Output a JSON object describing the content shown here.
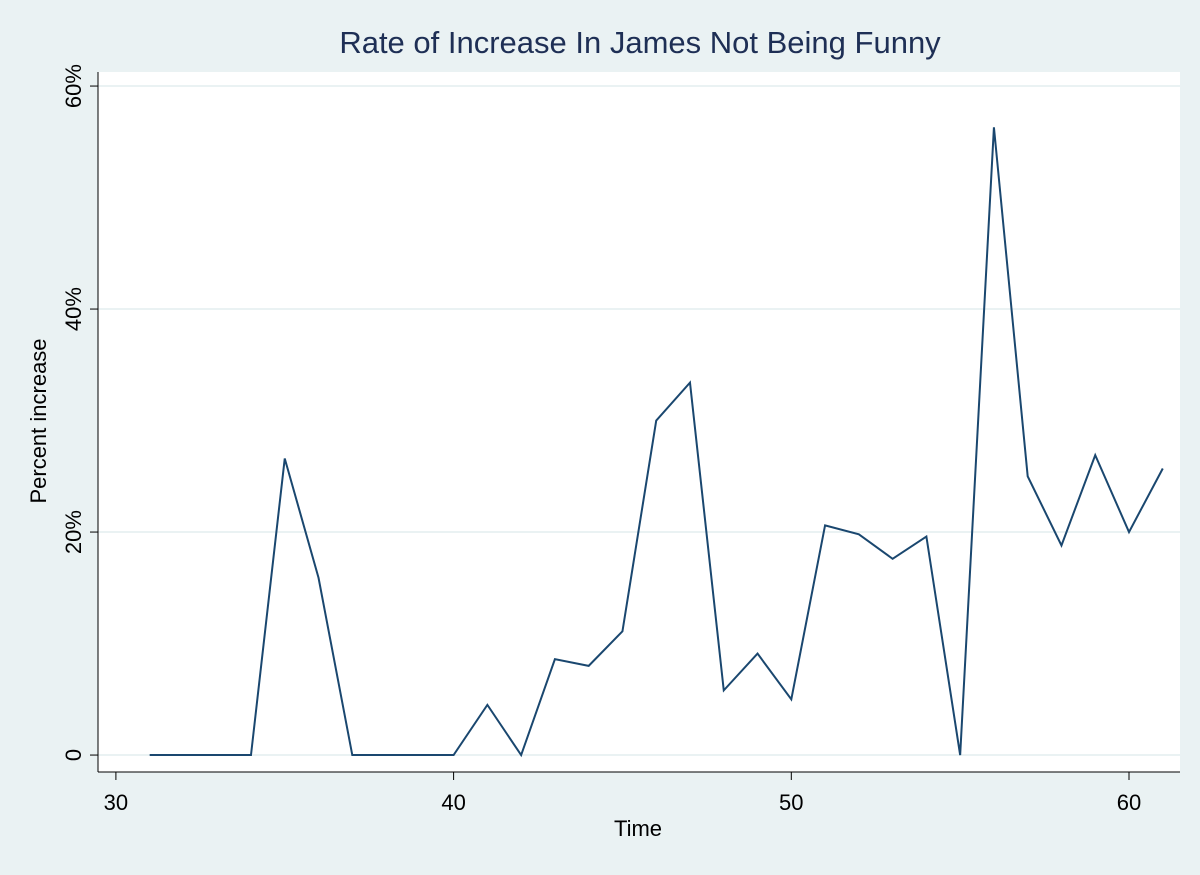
{
  "chart_data": {
    "type": "line",
    "title": "Rate of Increase In James Not Being Funny",
    "x_label": "Time",
    "y_label": "Percent increase",
    "x": [
      31,
      32,
      33,
      34,
      35,
      36,
      37,
      38,
      39,
      40,
      41,
      42,
      43,
      44,
      45,
      46,
      47,
      48,
      49,
      50,
      51,
      52,
      53,
      54,
      55,
      56,
      57,
      58,
      59,
      60,
      61
    ],
    "series": [
      {
        "color": "#1a476f",
        "values": [
          0,
          0,
          0,
          0,
          26.6,
          15.9,
          0,
          0,
          0,
          0,
          4.5,
          0,
          8.6,
          8.0,
          11.1,
          30.0,
          33.4,
          5.8,
          9.1,
          5.0,
          20.6,
          19.8,
          17.6,
          19.6,
          0,
          56.3,
          25.0,
          18.8,
          26.9,
          20.0,
          25.7
        ]
      }
    ],
    "xlim": [
      29.47,
      61.51
    ],
    "xticks": [
      30,
      40,
      50,
      60
    ],
    "ylim": [
      -1.52,
      61.26
    ],
    "yticks": [
      0,
      {
        "value": 20,
        "label": "20%"
      },
      {
        "value": 40,
        "label": "40%"
      },
      {
        "value": 60,
        "label": "60%"
      }
    ],
    "grid": true
  }
}
